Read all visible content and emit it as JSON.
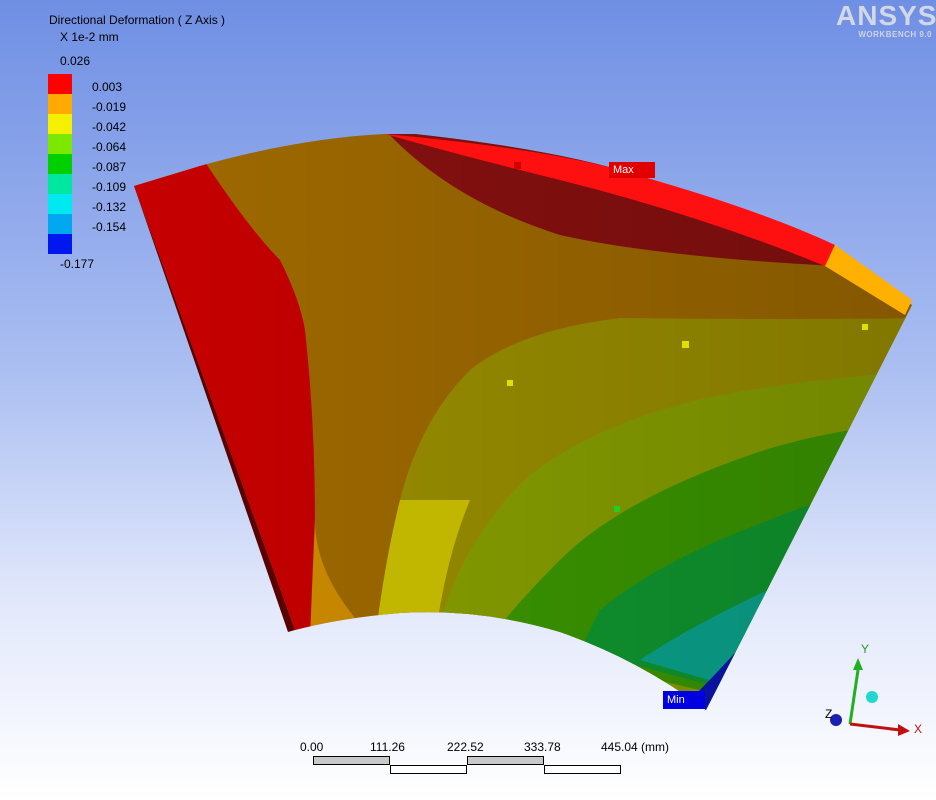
{
  "legend": {
    "title": "Directional Deformation ( Z Axis )",
    "units": "X 1e-2 mm",
    "max_value": "0.026",
    "min_value": "-0.177",
    "levels": [
      {
        "label": "0.003",
        "color": "#ff0000"
      },
      {
        "label": "-0.019",
        "color": "#ffaa00"
      },
      {
        "label": "-0.042",
        "color": "#f5f000"
      },
      {
        "label": "-0.064",
        "color": "#7ce800"
      },
      {
        "label": "-0.087",
        "color": "#00d000"
      },
      {
        "label": "-0.109",
        "color": "#00e8a0"
      },
      {
        "label": "-0.132",
        "color": "#00e8f0"
      },
      {
        "label": "-0.154",
        "color": "#00a8f0"
      },
      {
        "label": "",
        "color": "#0018f0"
      }
    ]
  },
  "logo": {
    "name": "ANSYS",
    "subtitle": "WORKBENCH 9.0"
  },
  "probes": {
    "max_label": "Max",
    "min_label": "Min"
  },
  "scale": {
    "ticks": [
      "0.00",
      "111.26",
      "222.52",
      "333.78",
      "445.04 (mm)"
    ]
  },
  "triad": {
    "x_label": "X",
    "y_label": "Y",
    "z_label": "Z"
  },
  "colors": {
    "red_band": "#c80000",
    "orange_band": "#9c6800",
    "accent_max": "#e00000",
    "accent_min": "#0000e0"
  }
}
